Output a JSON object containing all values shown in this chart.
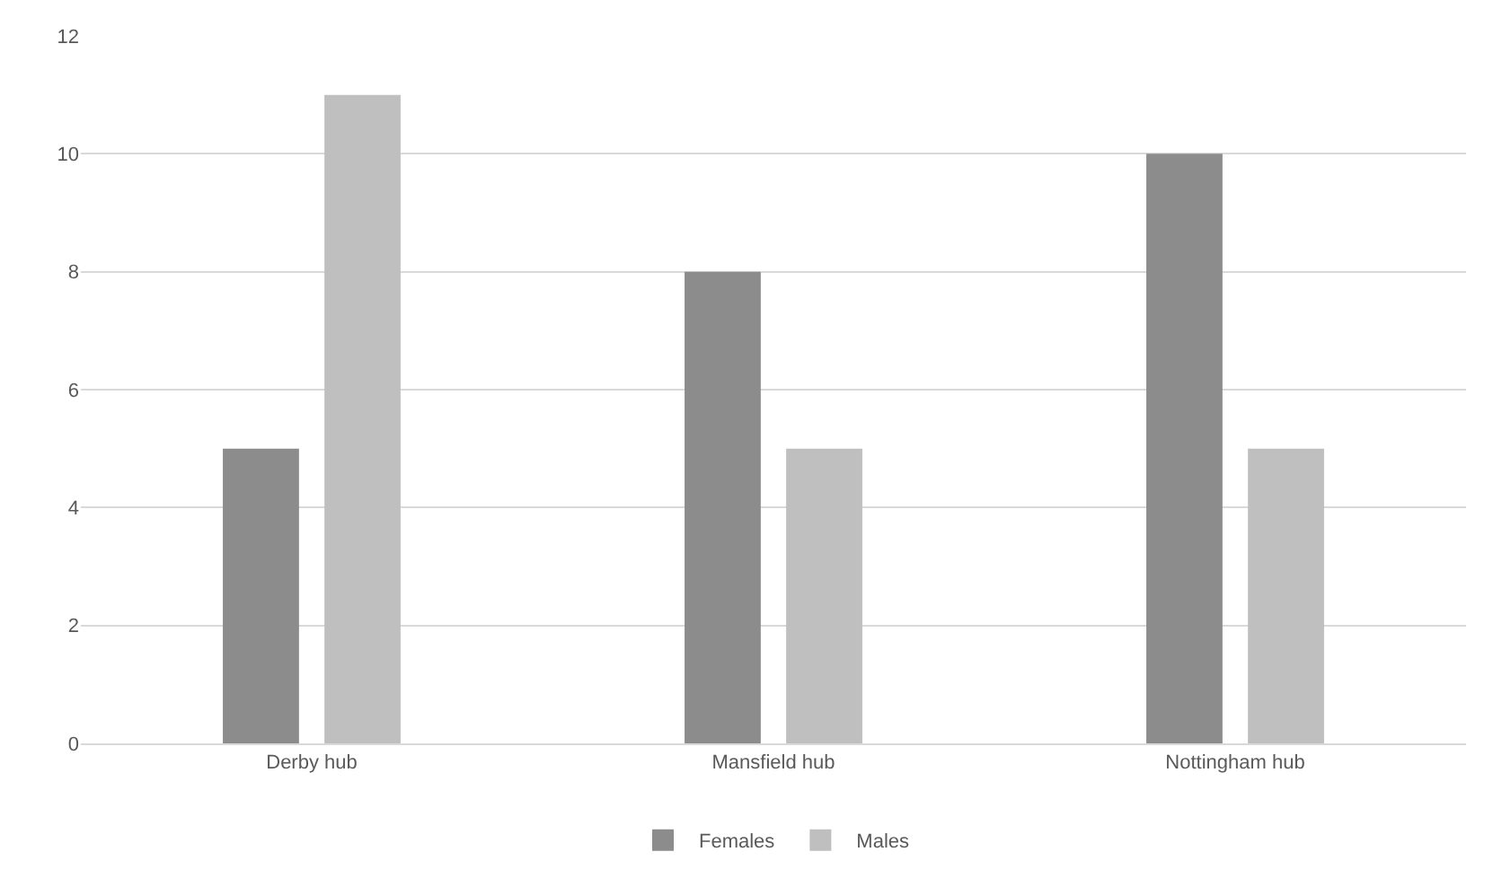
{
  "chart_data": {
    "type": "bar",
    "categories": [
      "Derby hub",
      "Mansfield hub",
      "Nottingham hub"
    ],
    "series": [
      {
        "name": "Females",
        "color": "#8c8c8c",
        "values": [
          5,
          8,
          10
        ]
      },
      {
        "name": "Males",
        "color": "#bfbfbf",
        "values": [
          11,
          5,
          5
        ]
      }
    ],
    "ylim": [
      0,
      12
    ],
    "yticks": [
      0,
      2,
      4,
      6,
      8,
      10,
      12
    ],
    "grid": "y",
    "legend": "bottom"
  }
}
